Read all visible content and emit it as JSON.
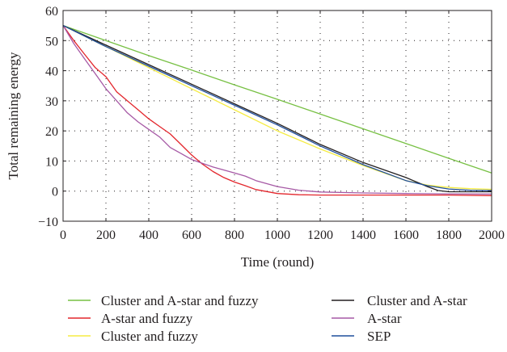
{
  "chart_data": {
    "type": "line",
    "title": "",
    "xlabel": "Time (round)",
    "ylabel": "Total remaining energy",
    "xlim": [
      0,
      2000
    ],
    "ylim": [
      -10,
      60
    ],
    "xticks": [
      "0",
      "200",
      "400",
      "600",
      "800",
      "1000",
      "1200",
      "1400",
      "1600",
      "1800",
      "2000"
    ],
    "yticks": [
      "−10",
      "0",
      "10",
      "20",
      "30",
      "40",
      "50",
      "60"
    ],
    "grid": "dotted",
    "legend_position": "bottom",
    "series": [
      {
        "name": "Cluster and A-star and fuzzy",
        "color": "#77c043",
        "x": [
          0,
          200,
          400,
          600,
          800,
          1000,
          1200,
          1400,
          1600,
          1800,
          2000
        ],
        "y": [
          55,
          50,
          45,
          40.2,
          35.3,
          30.5,
          25.6,
          20.7,
          15.8,
          10.9,
          6
        ]
      },
      {
        "name": "A-star and fuzzy",
        "color": "#e3262c",
        "x": [
          0,
          50,
          100,
          150,
          200,
          250,
          300,
          350,
          400,
          450,
          500,
          550,
          600,
          650,
          700,
          750,
          800,
          850,
          900,
          1000,
          1100,
          1200,
          1400,
          1600,
          1800,
          2000
        ],
        "y": [
          55,
          50,
          45.5,
          41,
          38,
          33,
          30,
          27,
          24,
          21.5,
          19,
          15.5,
          12,
          9,
          6.5,
          4.5,
          3,
          1.8,
          0.5,
          -0.8,
          -1.2,
          -1.3,
          -1.3,
          -1.3,
          -1.3,
          -1.5
        ]
      },
      {
        "name": "Cluster and fuzzy",
        "color": "#f5ec42",
        "x": [
          0,
          200,
          400,
          600,
          800,
          1000,
          1200,
          1400,
          1600,
          1700,
          1800,
          1900,
          2000
        ],
        "y": [
          55,
          48,
          41,
          34,
          27,
          20,
          14,
          8.5,
          3.5,
          2,
          1.2,
          0.8,
          0.6
        ]
      },
      {
        "name": "Cluster and A-star",
        "color": "#231f20",
        "x": [
          0,
          200,
          400,
          600,
          800,
          1000,
          1200,
          1400,
          1600,
          1650,
          1700,
          1750,
          1800,
          1900,
          2000
        ],
        "y": [
          55,
          48.5,
          42,
          35.5,
          29,
          22.5,
          15.5,
          9.5,
          4.5,
          3,
          1.5,
          0.2,
          -0.2,
          -0.2,
          -0.2
        ]
      },
      {
        "name": "A-star",
        "color": "#a659a5",
        "x": [
          0,
          50,
          100,
          150,
          200,
          250,
          300,
          350,
          400,
          450,
          500,
          550,
          600,
          700,
          800,
          850,
          900,
          1000,
          1100,
          1200,
          1400,
          1600,
          1800,
          2000
        ],
        "y": [
          55,
          49,
          44,
          39,
          34,
          30,
          26,
          23,
          20.5,
          18,
          14.5,
          12.5,
          10.5,
          8,
          6,
          5,
          3.5,
          1.5,
          0.3,
          -0.3,
          -0.6,
          -0.8,
          -0.9,
          -1
        ]
      },
      {
        "name": "SEP",
        "color": "#1f4e9c",
        "x": [
          0,
          200,
          400,
          600,
          800,
          1000,
          1200,
          1400,
          1600,
          1700,
          1800,
          1900,
          2000
        ],
        "y": [
          55,
          48,
          41.5,
          35,
          28.5,
          22,
          15,
          8.8,
          3.5,
          1.8,
          0.7,
          0.3,
          0.2
        ]
      }
    ]
  }
}
